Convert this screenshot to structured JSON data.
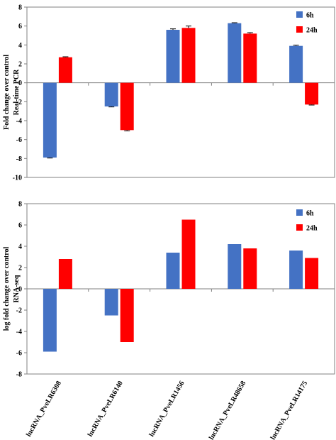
{
  "chart_data": [
    {
      "type": "bar",
      "ylabel": [
        "Fold change over control",
        "Real-time PCR"
      ],
      "ylim": [
        -10,
        8
      ],
      "yticks": [
        -10,
        -8,
        -6,
        -4,
        -2,
        0,
        2,
        4,
        6,
        8
      ],
      "categories": [
        "lncRNA_PveLR6308",
        "lncRNA_PveLR6140",
        "lncRNA_PveLR1456",
        "lncRNA_PveLR48658",
        "lncRNA_PveLR14175"
      ],
      "series": [
        {
          "name": "6h",
          "color": "#4472c4",
          "values": [
            -7.9,
            -2.5,
            5.6,
            6.3,
            3.9
          ],
          "errors": [
            0.05,
            0.05,
            0.1,
            0.05,
            0.08
          ]
        },
        {
          "name": "24h",
          "color": "#ff0000",
          "values": [
            2.7,
            -5.0,
            5.8,
            5.2,
            -2.3
          ],
          "errors": [
            0.05,
            0.08,
            0.2,
            0.1,
            0.05
          ]
        }
      ],
      "legend": "top-right",
      "grid": false
    },
    {
      "type": "bar",
      "ylabel": [
        "log fold change over control",
        "RNA-seq"
      ],
      "ylim": [
        -8,
        8
      ],
      "yticks": [
        -8,
        -6,
        -4,
        -2,
        0,
        2,
        4,
        6,
        8
      ],
      "categories": [
        "lncRNA_PveLR6308",
        "lncRNA_PveLR6140",
        "lncRNA_PveLR1456",
        "lncRNA_PveLR48658",
        "lncRNA_PveLR14175"
      ],
      "series": [
        {
          "name": "6h",
          "color": "#4472c4",
          "values": [
            -5.9,
            -2.5,
            3.4,
            4.2,
            3.6
          ]
        },
        {
          "name": "24h",
          "color": "#ff0000",
          "values": [
            2.8,
            -5.0,
            6.5,
            3.8,
            2.9
          ]
        }
      ],
      "legend": "top-right",
      "grid": false
    }
  ]
}
